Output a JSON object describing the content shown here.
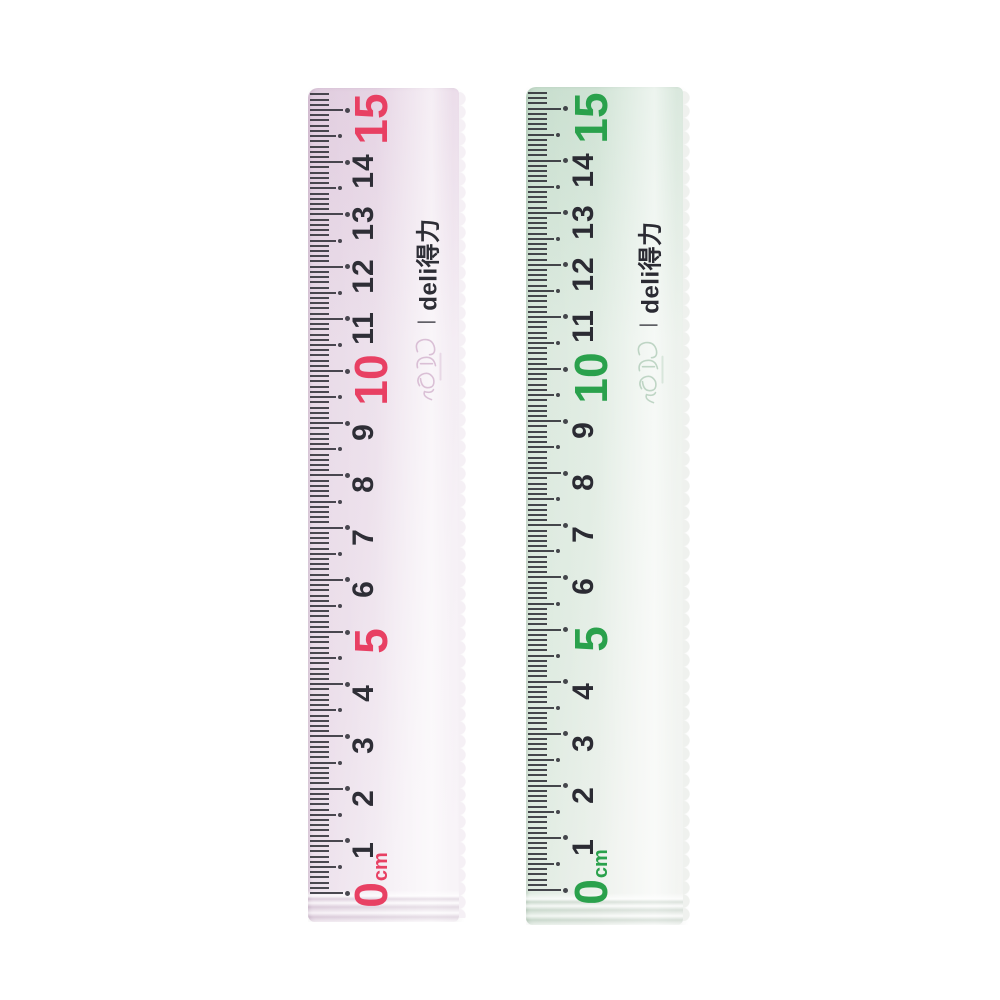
{
  "page": {
    "background_color": "#ffffff"
  },
  "rulers": [
    {
      "name": "pink-ruler",
      "accent_color": "#e84063",
      "tint_color": "#e7d9e6",
      "number_color": "#2e2e36",
      "brand_text": "deli得力",
      "brand_divider": "|",
      "unit_suffix": "cm",
      "length_cm": 15,
      "scale_numbers": [
        "0",
        "1",
        "2",
        "3",
        "4",
        "5",
        "6",
        "7",
        "8",
        "9",
        "10",
        "11",
        "12",
        "13",
        "14",
        "15"
      ],
      "accent_numbers": [
        "0",
        "5",
        "10",
        "15"
      ]
    },
    {
      "name": "green-ruler",
      "accent_color": "#2aa14c",
      "tint_color": "#d8e7db",
      "number_color": "#2b2b33",
      "brand_text": "deli得力",
      "brand_divider": "|",
      "unit_suffix": "cm",
      "length_cm": 15,
      "scale_numbers": [
        "0",
        "1",
        "2",
        "3",
        "4",
        "5",
        "6",
        "7",
        "8",
        "9",
        "10",
        "11",
        "12",
        "13",
        "14",
        "15"
      ],
      "accent_numbers": [
        "0",
        "5",
        "10",
        "15"
      ]
    }
  ]
}
